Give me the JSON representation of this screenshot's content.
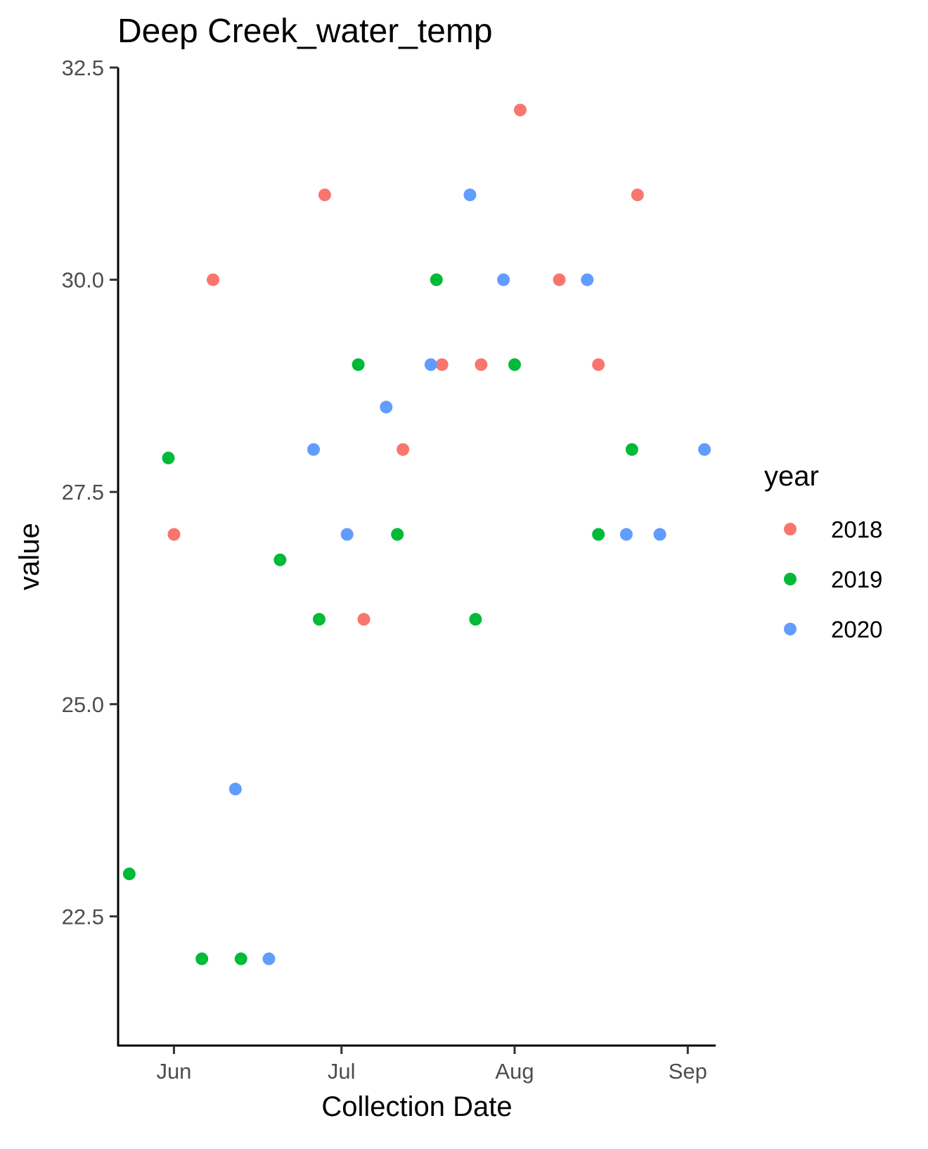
{
  "chart_data": {
    "type": "scatter",
    "title": "Deep Creek_water_temp",
    "xlabel": "Collection Date",
    "ylabel": "value",
    "x_ticks": [
      "Jun",
      "Jul",
      "Aug",
      "Sep"
    ],
    "y_ticks": [
      "22.5",
      "25.0",
      "27.5",
      "30.0",
      "32.5"
    ],
    "xlim": [
      "05-22",
      "09-06"
    ],
    "ylim": [
      21.5,
      32.5
    ],
    "grid": false,
    "legend": {
      "title": "year",
      "placement": "right"
    },
    "series": [
      {
        "name": "2018",
        "color": "#F8766D",
        "points": [
          {
            "x": "06-01",
            "y": 27.0
          },
          {
            "x": "06-08",
            "y": 30.0
          },
          {
            "x": "06-28",
            "y": 31.0
          },
          {
            "x": "07-05",
            "y": 26.0
          },
          {
            "x": "07-12",
            "y": 28.0
          },
          {
            "x": "07-19",
            "y": 29.0
          },
          {
            "x": "07-26",
            "y": 29.0
          },
          {
            "x": "08-02",
            "y": 32.0
          },
          {
            "x": "08-09",
            "y": 30.0
          },
          {
            "x": "08-16",
            "y": 29.0
          },
          {
            "x": "08-23",
            "y": 31.0
          }
        ]
      },
      {
        "name": "2019",
        "color": "#00BA38",
        "points": [
          {
            "x": "05-24",
            "y": 23.0
          },
          {
            "x": "05-31",
            "y": 27.9
          },
          {
            "x": "06-06",
            "y": 22.0
          },
          {
            "x": "06-13",
            "y": 22.0
          },
          {
            "x": "06-20",
            "y": 26.7
          },
          {
            "x": "06-27",
            "y": 26.0
          },
          {
            "x": "07-04",
            "y": 29.0
          },
          {
            "x": "07-11",
            "y": 27.0
          },
          {
            "x": "07-18",
            "y": 30.0
          },
          {
            "x": "07-25",
            "y": 26.0
          },
          {
            "x": "08-01",
            "y": 29.0
          },
          {
            "x": "08-16",
            "y": 27.0
          },
          {
            "x": "08-22",
            "y": 28.0
          }
        ]
      },
      {
        "name": "2020",
        "color": "#619CFF",
        "points": [
          {
            "x": "06-12",
            "y": 24.0
          },
          {
            "x": "06-18",
            "y": 22.0
          },
          {
            "x": "06-26",
            "y": 28.0
          },
          {
            "x": "07-02",
            "y": 27.0
          },
          {
            "x": "07-09",
            "y": 28.5
          },
          {
            "x": "07-17",
            "y": 29.0
          },
          {
            "x": "07-24",
            "y": 31.0
          },
          {
            "x": "07-30",
            "y": 30.0
          },
          {
            "x": "08-14",
            "y": 30.0
          },
          {
            "x": "08-21",
            "y": 27.0
          },
          {
            "x": "08-27",
            "y": 27.0
          },
          {
            "x": "09-04",
            "y": 28.0
          }
        ]
      }
    ]
  }
}
